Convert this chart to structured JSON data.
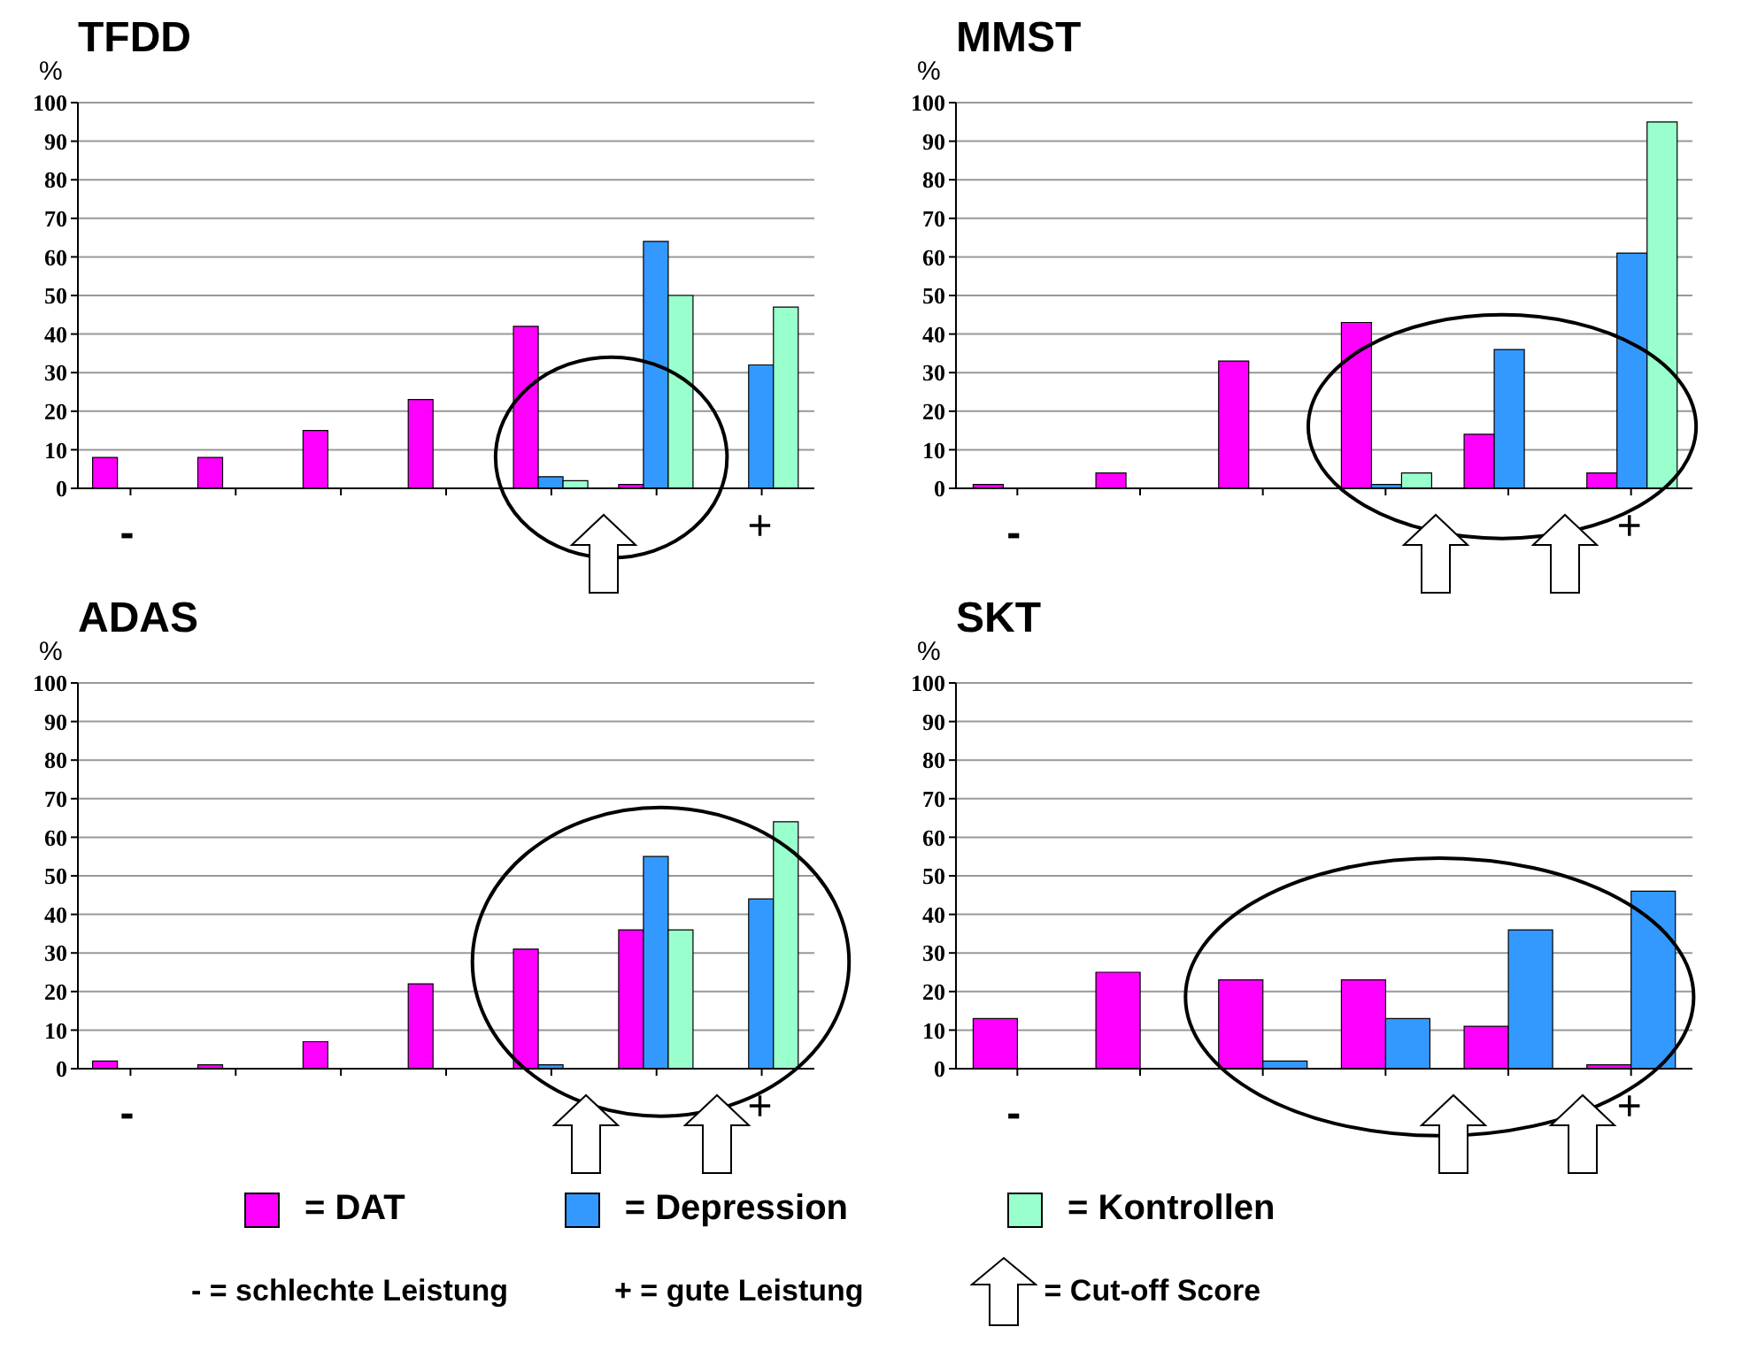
{
  "chart_data": [
    {
      "type": "bar",
      "title": "TFDD",
      "ylabel": "%",
      "categories": [
        null,
        null,
        null,
        null,
        null,
        null,
        null
      ],
      "ylim": [
        0,
        100
      ],
      "yticks": [
        0,
        10,
        20,
        30,
        40,
        50,
        60,
        70,
        80,
        90,
        100
      ],
      "grid": "y",
      "legend": "bottom",
      "annotations": [
        "-",
        "+"
      ],
      "series": [
        {
          "name": "= DAT",
          "color": "#ff00ff",
          "values": [
            8,
            8,
            15,
            23,
            42,
            1,
            0
          ]
        },
        {
          "name": "= Depression",
          "color": "#3399ff",
          "values": [
            0,
            0,
            0,
            0,
            3,
            64,
            32
          ]
        },
        {
          "name": "= Kontrollen",
          "color": "#99ffcc",
          "values": [
            0,
            0,
            0,
            0,
            2,
            50,
            47
          ]
        }
      ]
    },
    {
      "type": "bar",
      "title": "MMST",
      "ylabel": "%",
      "categories": [
        null,
        null,
        null,
        null,
        null,
        null
      ],
      "ylim": [
        0,
        100
      ],
      "yticks": [
        0,
        10,
        20,
        30,
        40,
        50,
        60,
        70,
        80,
        90,
        100
      ],
      "grid": "y",
      "annotations": [
        "-",
        "+"
      ],
      "series": [
        {
          "color": "#ff00ff",
          "values": [
            1,
            4,
            33,
            43,
            14,
            4
          ]
        },
        {
          "color": "#3399ff",
          "values": [
            0,
            0,
            0,
            1,
            36,
            61
          ]
        },
        {
          "color": "#99ffcc",
          "values": [
            0,
            0,
            0,
            4,
            0,
            95
          ]
        }
      ]
    },
    {
      "type": "bar",
      "title": "ADAS",
      "ylabel": "%",
      "categories": [
        null,
        null,
        null,
        null,
        null,
        null,
        null
      ],
      "ylim": [
        0,
        100
      ],
      "yticks": [
        0,
        10,
        20,
        30,
        40,
        50,
        60,
        70,
        80,
        90,
        100
      ],
      "grid": "y",
      "annotations": [
        "-",
        "+"
      ],
      "series": [
        {
          "color": "#ff00ff",
          "values": [
            2,
            1,
            7,
            22,
            31,
            36,
            0
          ]
        },
        {
          "color": "#3399ff",
          "values": [
            0,
            0,
            0,
            0,
            1,
            55,
            44
          ]
        },
        {
          "color": "#99ffcc",
          "values": [
            0,
            0,
            0,
            0,
            0,
            36,
            64
          ]
        }
      ]
    },
    {
      "type": "bar",
      "title": "SKT",
      "ylabel": "%",
      "categories": [
        null,
        null,
        null,
        null,
        null,
        null
      ],
      "ylim": [
        0,
        100
      ],
      "yticks": [
        0,
        10,
        20,
        30,
        40,
        50,
        60,
        70,
        80,
        90,
        100
      ],
      "grid": "y",
      "annotations": [
        "-",
        "+",
        "- = schlechte Leistung",
        "+ = gute Leistung",
        "= Cut-off Score"
      ],
      "series": [
        {
          "color": "#ff00ff",
          "values": [
            13,
            25,
            23,
            23,
            11,
            1
          ]
        },
        {
          "color": "#3399ff",
          "values": [
            0,
            0,
            2,
            13,
            36,
            46
          ]
        }
      ]
    }
  ]
}
